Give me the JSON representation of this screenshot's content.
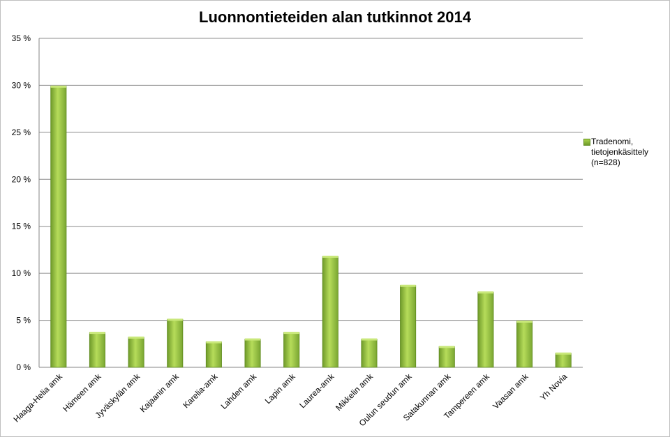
{
  "chart_data": {
    "type": "bar",
    "title": "Luonnontieteiden alan tutkinnot 2014",
    "xlabel": "",
    "ylabel": "",
    "ylim": [
      0,
      35
    ],
    "y_ticks": [
      "0 %",
      "5 %",
      "10 %",
      "15 %",
      "20 %",
      "25 %",
      "30 %",
      "35 %"
    ],
    "categories": [
      "Haaga-Helia amk",
      "Hämeen amk",
      "Jyväskylän amk",
      "Kajaanin amk",
      "Karelia-amk",
      "Lahden amk",
      "Lapin amk",
      "Laurea-amk",
      "Mikkelin amk",
      "Oulun seudun amk",
      "Satakunnan amk",
      "Tampereen amk",
      "Vaasan amk",
      "Yh Novia"
    ],
    "series": [
      {
        "name": "Tradenomi, tietojenkäsittely (n=828)",
        "color": "#8cb83a",
        "values": [
          29.9,
          3.7,
          3.2,
          5.1,
          2.7,
          3.0,
          3.7,
          11.8,
          3.0,
          8.7,
          2.2,
          8.0,
          4.9,
          1.5
        ]
      }
    ],
    "grid": true,
    "legend_position": "right"
  }
}
